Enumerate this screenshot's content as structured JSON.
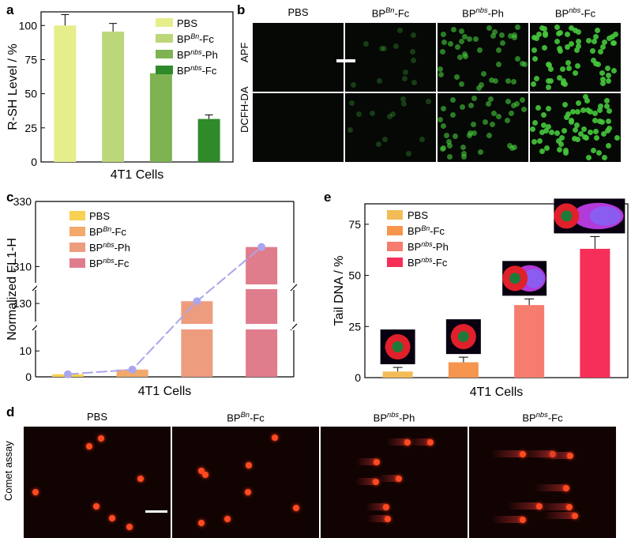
{
  "panels": {
    "a": {
      "letter": "a"
    },
    "b": {
      "letter": "b"
    },
    "c": {
      "letter": "c"
    },
    "d": {
      "letter": "d"
    },
    "e": {
      "letter": "e"
    }
  },
  "colors": {
    "a": [
      "#e6ee8c",
      "#bcd67a",
      "#7fb352",
      "#2f8a2a"
    ],
    "c": [
      "#f8d052",
      "#f2a96a",
      "#ee9c7e",
      "#e07d8c"
    ],
    "e": [
      "#f4bc56",
      "#f5954e",
      "#f67c6e",
      "#f52f58"
    ],
    "c_line": "#aaa6ee"
  },
  "chart_data": [
    {
      "type": "bar",
      "panel": "a",
      "categories": [
        "PBS",
        "BP^Bn-Fc",
        "BP^nbs-Ph",
        "BP^nbs-Fc"
      ],
      "values": [
        100,
        95.5,
        65,
        31.5
      ],
      "errors": [
        8,
        6,
        4,
        3
      ],
      "xlabel": "4T1 Cells",
      "ylabel": "R-SH Level / %",
      "ylim": [
        0,
        110
      ],
      "yticks": [
        0,
        25,
        50,
        75,
        100
      ],
      "legend": [
        {
          "base": "PBS",
          "sup": "",
          "suffix": ""
        },
        {
          "base": "BP",
          "sup": "Bn",
          "suffix": "-Fc"
        },
        {
          "base": "BP",
          "sup": "nbs",
          "suffix": "-Ph"
        },
        {
          "base": "BP",
          "sup": "nbs",
          "suffix": "-Fc"
        }
      ],
      "legend_position": "top-right"
    },
    {
      "type": "bar",
      "panel": "c",
      "categories": [
        "PBS",
        "BP^Bn-Fc",
        "BP^nbs-Ph",
        "BP^nbs-Fc"
      ],
      "values": [
        1,
        2.8,
        131,
        316
      ],
      "line_values": [
        1,
        2.8,
        131,
        316
      ],
      "xlabel": "4T1 Cells",
      "ylabel": "Normalized FL1-H",
      "broken_axis": [
        [
          0,
          18
        ],
        [
          122,
          136
        ],
        [
          305,
          330
        ]
      ],
      "yticks": [
        0,
        10,
        130,
        310,
        330
      ],
      "legend": [
        {
          "base": "PBS",
          "sup": "",
          "suffix": ""
        },
        {
          "base": "BP",
          "sup": "Bn",
          "suffix": "-Fc"
        },
        {
          "base": "BP",
          "sup": "nbs",
          "suffix": "-Ph"
        },
        {
          "base": "BP",
          "sup": "nbs",
          "suffix": "-Fc"
        }
      ],
      "legend_position": "top-left"
    },
    {
      "type": "bar",
      "panel": "e",
      "categories": [
        "PBS",
        "BP^Bn-Fc",
        "BP^nbs-Ph",
        "BP^nbs-Fc"
      ],
      "values": [
        3,
        7.5,
        35.5,
        63
      ],
      "errors": [
        2,
        2.5,
        3,
        6
      ],
      "xlabel": "4T1 Cells",
      "ylabel": "Tail DNA / %",
      "ylim": [
        0,
        85
      ],
      "yticks": [
        0,
        25,
        50,
        75
      ],
      "legend": [
        {
          "base": "PBS",
          "sup": "",
          "suffix": ""
        },
        {
          "base": "BP",
          "sup": "Bn",
          "suffix": "-Fc"
        },
        {
          "base": "BP",
          "sup": "nbs",
          "suffix": "-Ph"
        },
        {
          "base": "BP",
          "sup": "nbs",
          "suffix": "-Fc"
        }
      ],
      "legend_position": "top-left"
    }
  ],
  "panel_b": {
    "columns": [
      {
        "base": "PBS",
        "sup": "",
        "suffix": ""
      },
      {
        "base": "BP",
        "sup": "Bn",
        "suffix": "-Fc"
      },
      {
        "base": "BP",
        "sup": "nbs",
        "suffix": "-Ph"
      },
      {
        "base": "BP",
        "sup": "nbs",
        "suffix": "-Fc"
      }
    ],
    "rows": [
      "APF",
      "DCFH-DA"
    ],
    "intensity": [
      0.0,
      0.05,
      0.55,
      1.0
    ]
  },
  "panel_d": {
    "columns": [
      {
        "base": "PBS",
        "sup": "",
        "suffix": ""
      },
      {
        "base": "BP",
        "sup": "Bn",
        "suffix": "-Fc"
      },
      {
        "base": "BP",
        "sup": "nbs",
        "suffix": "-Ph"
      },
      {
        "base": "BP",
        "sup": "nbs",
        "suffix": "-Fc"
      }
    ],
    "row_label": "Comet assay"
  }
}
